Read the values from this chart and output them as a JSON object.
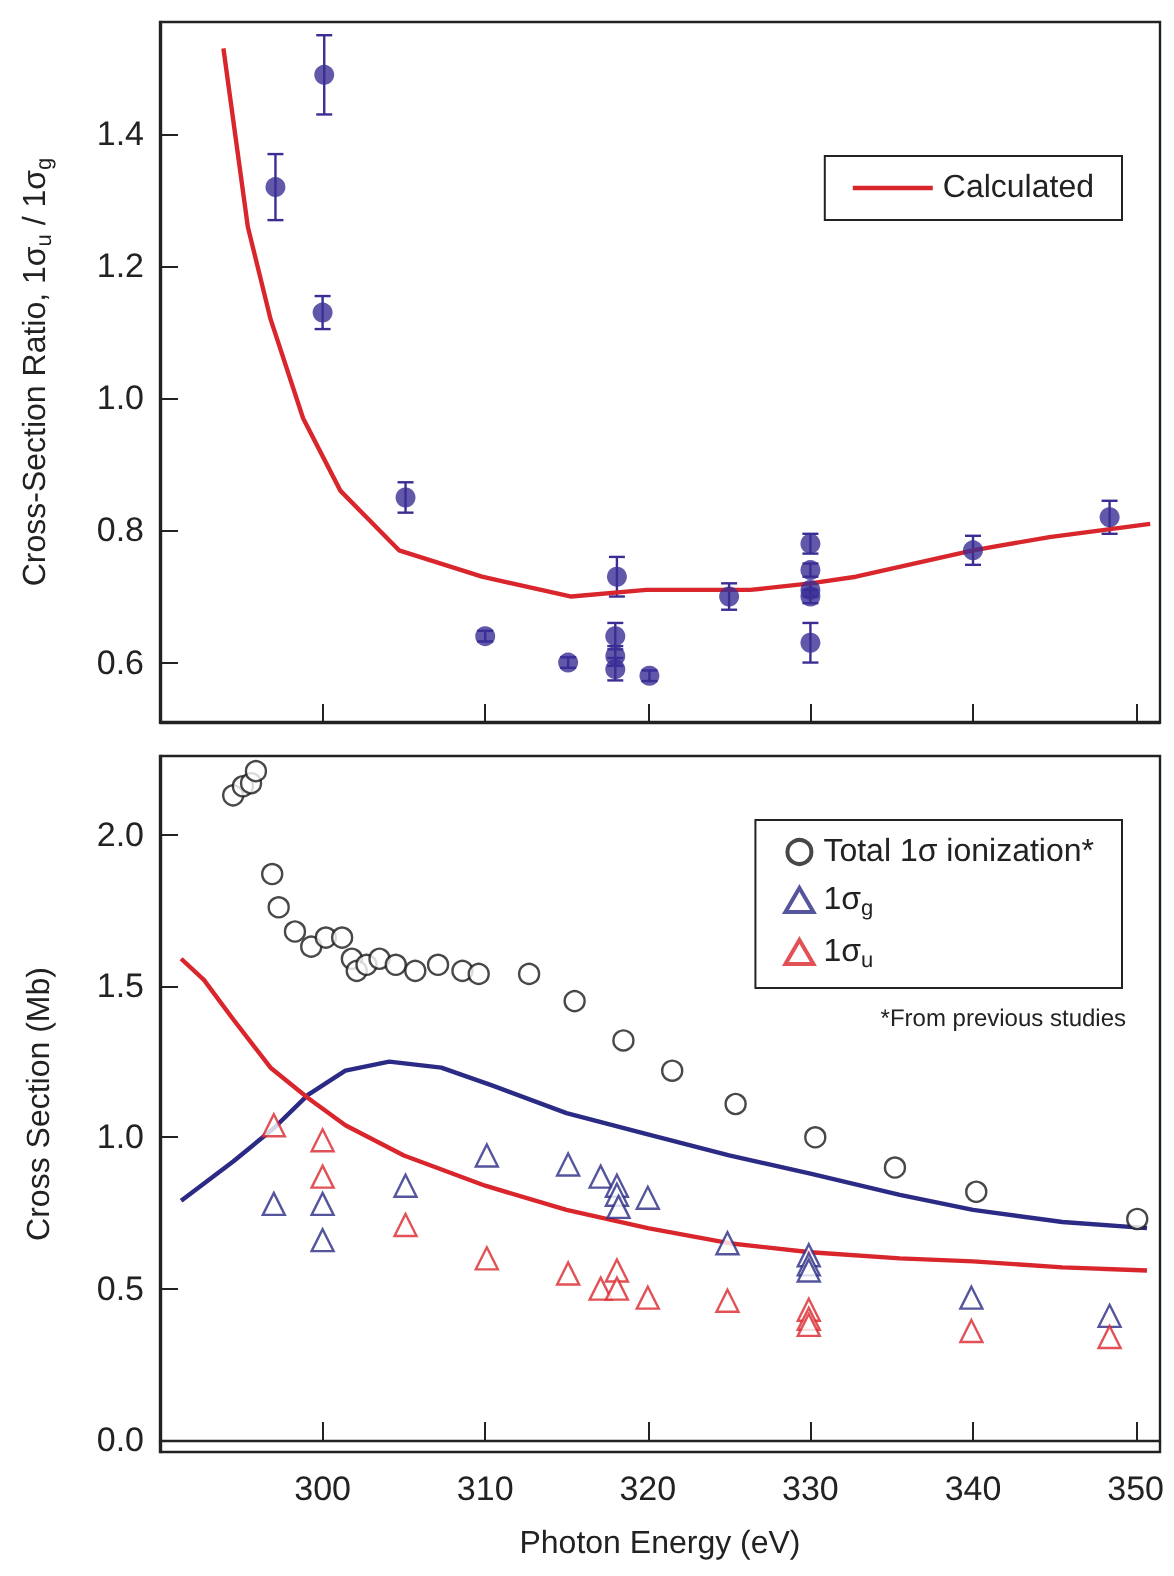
{
  "chart_data": [
    {
      "type": "scatter",
      "ylabel": "Cross-Section Ratio, 1σ$_{u}$ / 1σ$_{g}$",
      "xlim": [
        290,
        351.5
      ],
      "xticks": [
        300,
        310,
        320,
        330,
        340,
        350
      ],
      "ylim": [
        0.51,
        1.57
      ],
      "yticks": [
        {
          "value": 0.6,
          "label": "0.6"
        },
        {
          "value": 0.8,
          "label": "0.8"
        },
        {
          "value": 1,
          "label": "1.0"
        },
        {
          "value": 1.2,
          "label": "1.2"
        },
        {
          "value": 1.4,
          "label": "1.4"
        }
      ],
      "tick_labels": "y",
      "legend": "top right",
      "series": [
        {
          "type": "scatter",
          "color": "#3a2e95",
          "marker": "circle",
          "x": [
            297.1,
            300.1,
            300,
            305.1,
            310,
            315.1,
            318.1,
            318,
            318,
            318,
            320.1,
            325,
            330,
            330,
            330,
            330,
            330,
            340,
            348.4
          ],
          "values": [
            1.32,
            1.49,
            1.13,
            0.85,
            0.64,
            0.6,
            0.73,
            0.64,
            0.61,
            0.59,
            0.58,
            0.7,
            0.78,
            0.74,
            0.71,
            0.7,
            0.63,
            0.77,
            0.82
          ],
          "errors": [
            0.05,
            0.06,
            0.025,
            0.023,
            0.008,
            0.008,
            0.03,
            0.02,
            0.015,
            0.017,
            0.008,
            0.02,
            0.015,
            0.01,
            0.01,
            0.01,
            0.03,
            0.022,
            0.025
          ]
        },
        {
          "type": "line",
          "name": "Calculated",
          "color": "#d9262c",
          "marker": "none",
          "x": [
            293.9,
            295.4,
            296.8,
            298.8,
            301.1,
            304.7,
            309.8,
            315.3,
            319.9,
            326.3,
            330,
            332.8,
            340,
            344.7,
            350.9
          ],
          "values": [
            1.53,
            1.26,
            1.12,
            0.97,
            0.86,
            0.77,
            0.73,
            0.7,
            0.71,
            0.71,
            0.72,
            0.73,
            0.77,
            0.79,
            0.81
          ]
        }
      ]
    },
    {
      "type": "scatter",
      "xlabel": "Photon Energy (eV)",
      "ylabel": "Cross Section (Mb)",
      "xlim": [
        290,
        351.5
      ],
      "xticks": [
        300,
        310,
        320,
        330,
        340,
        350
      ],
      "ylim": [
        -0.04,
        2.26
      ],
      "yticks": [
        {
          "value": 0,
          "label": "0.0"
        },
        {
          "value": 0.5,
          "label": "0.5"
        },
        {
          "value": 1,
          "label": "1.0"
        },
        {
          "value": 1.5,
          "label": "1.5"
        },
        {
          "value": 2,
          "label": "2.0"
        }
      ],
      "legend": "top right",
      "annotations": [
        "*From previous studies"
      ],
      "series": [
        {
          "type": "scatter",
          "name": "Total 1σ ionization*",
          "color": "#1a1a1a",
          "marker": "circle",
          "x": [
            294.5,
            295.1,
            295.6,
            295.9,
            296.9,
            297.3,
            298.3,
            299.3,
            300.2,
            301.2,
            301.8,
            302.1,
            302.7,
            303.5,
            304.5,
            305.7,
            307.1,
            308.6,
            309.6,
            312.7,
            315.5,
            318.5,
            321.5,
            325.4,
            330.3,
            335.2,
            340.2,
            350.1
          ],
          "values": [
            2.13,
            2.16,
            2.17,
            2.21,
            1.87,
            1.76,
            1.68,
            1.63,
            1.66,
            1.66,
            1.59,
            1.55,
            1.57,
            1.59,
            1.57,
            1.55,
            1.57,
            1.55,
            1.54,
            1.54,
            1.45,
            1.32,
            1.22,
            1.11,
            1,
            0.9,
            0.82,
            0.73
          ]
        },
        {
          "type": "scatter",
          "name": "1σ$_{g}$",
          "color": "#2b2a85",
          "marker": "triangle",
          "x": [
            297,
            300,
            300,
            305.1,
            310.1,
            315.1,
            317.1,
            318.1,
            318.1,
            318.2,
            320,
            324.9,
            329.9,
            329.9,
            329.9,
            339.9,
            348.4
          ],
          "values": [
            0.78,
            0.78,
            0.66,
            0.84,
            0.94,
            0.91,
            0.87,
            0.84,
            0.81,
            0.77,
            0.8,
            0.65,
            0.61,
            0.58,
            0.56,
            0.47,
            0.41
          ]
        },
        {
          "type": "scatter",
          "name": "1σ$_{u}$",
          "color": "#d9262c",
          "marker": "triangle",
          "x": [
            297,
            300,
            300,
            305.1,
            310.1,
            315.1,
            317.1,
            318.1,
            318.1,
            320,
            324.9,
            329.9,
            329.9,
            329.9,
            339.9,
            348.4
          ],
          "values": [
            1.04,
            0.99,
            0.87,
            0.71,
            0.6,
            0.55,
            0.5,
            0.56,
            0.5,
            0.47,
            0.46,
            0.43,
            0.4,
            0.38,
            0.36,
            0.34
          ]
        },
        {
          "type": "line",
          "color": "#2b2a85",
          "marker": "none",
          "x": [
            291.3,
            294.5,
            297,
            299.1,
            301.4,
            304.1,
            307.3,
            310.5,
            315,
            320,
            325,
            330,
            335.5,
            340,
            345.5,
            350.7
          ],
          "values": [
            0.79,
            0.92,
            1.03,
            1.14,
            1.22,
            1.25,
            1.23,
            1.17,
            1.08,
            1.01,
            0.94,
            0.88,
            0.81,
            0.76,
            0.72,
            0.7
          ]
        },
        {
          "type": "line",
          "color": "#d9262c",
          "marker": "none",
          "x": [
            291.3,
            292.7,
            294.5,
            296.8,
            299.1,
            301.4,
            305,
            310,
            315,
            320,
            325,
            330,
            335.5,
            340,
            345.5,
            350.7
          ],
          "values": [
            1.59,
            1.52,
            1.39,
            1.23,
            1.13,
            1.04,
            0.94,
            0.84,
            0.76,
            0.7,
            0.65,
            0.62,
            0.6,
            0.59,
            0.57,
            0.56
          ]
        }
      ]
    }
  ]
}
